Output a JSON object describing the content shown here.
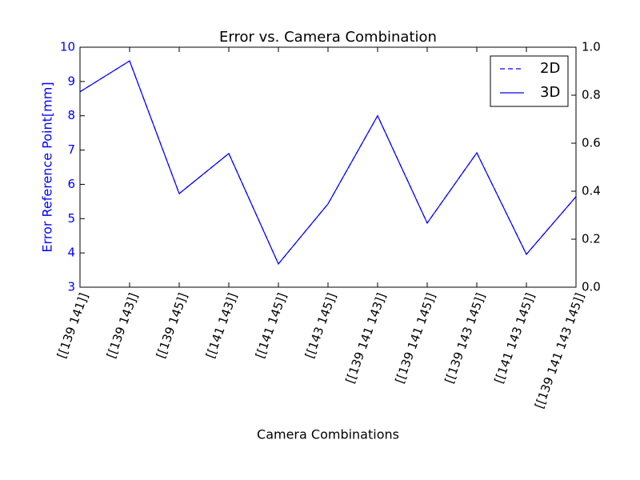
{
  "chart_data": {
    "type": "line",
    "title": "Error vs. Camera Combination",
    "x_label": "Camera Combinations",
    "y_label": "Error Reference Point[mm]",
    "categories": [
      "[[139 141]]",
      "[[139 143]]",
      "[[139 145]]",
      "[[141 143]]",
      "[[141 145]]",
      "[[143 145]]",
      "[[139 141 143]]",
      "[[139 141 145]]",
      "[[139 143 145]]",
      "[[141 143 145]]",
      "[[139 141 143 145]]"
    ],
    "series": [
      {
        "name": "2D",
        "color": "#0000ff",
        "dash": true,
        "values": [
          8.7,
          9.6,
          5.73,
          6.9,
          3.68,
          5.43,
          8.0,
          4.87,
          6.92,
          3.96,
          5.64
        ]
      },
      {
        "name": "3D",
        "color": "#0000ff",
        "dash": false,
        "values": [
          8.7,
          9.6,
          5.73,
          6.9,
          3.68,
          5.43,
          8.0,
          4.87,
          6.92,
          3.96,
          5.64
        ]
      }
    ],
    "ylim": [
      3,
      10
    ],
    "yticks": [
      3,
      4,
      5,
      6,
      7,
      8,
      9,
      10
    ],
    "y_color": "#0000ff",
    "y2lim": [
      0,
      1
    ],
    "y2ticks": [
      {
        "value": 0,
        "label": "0.0"
      },
      {
        "value": 0.2,
        "label": "0.2"
      },
      {
        "value": 0.4,
        "label": "0.4"
      },
      {
        "value": 0.6,
        "label": "0.6"
      },
      {
        "value": 0.8,
        "label": "0.8"
      },
      {
        "value": 1,
        "label": "1.0"
      }
    ],
    "legend": "upper right"
  }
}
